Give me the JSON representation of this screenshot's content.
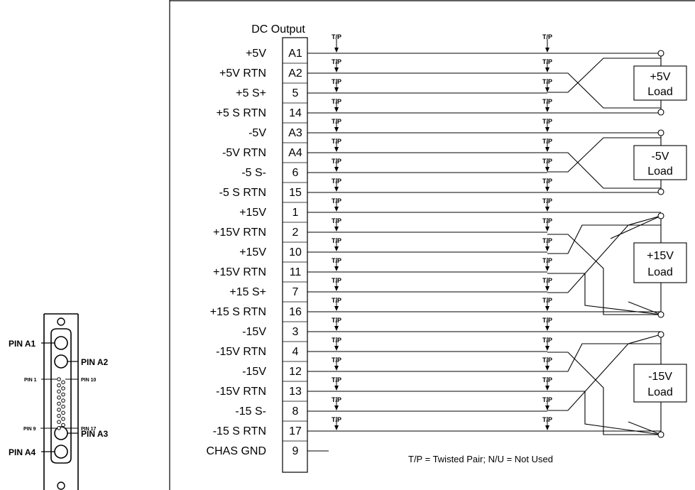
{
  "diagram": {
    "header": "DC Output",
    "rows": [
      {
        "signal": "+5V",
        "pin": "A1"
      },
      {
        "signal": "+5V RTN",
        "pin": "A2"
      },
      {
        "signal": "+5 S+",
        "pin": "5"
      },
      {
        "signal": "+5 S RTN",
        "pin": "14"
      },
      {
        "signal": "-5V",
        "pin": "A3"
      },
      {
        "signal": "-5V RTN",
        "pin": "A4"
      },
      {
        "signal": "-5 S-",
        "pin": "6"
      },
      {
        "signal": "-5 S RTN",
        "pin": "15"
      },
      {
        "signal": "+15V",
        "pin": "1"
      },
      {
        "signal": "+15V RTN",
        "pin": "2"
      },
      {
        "signal": "+15V",
        "pin": "10"
      },
      {
        "signal": "+15V RTN",
        "pin": "11"
      },
      {
        "signal": "+15 S+",
        "pin": "7"
      },
      {
        "signal": "+15 S RTN",
        "pin": "16"
      },
      {
        "signal": "-15V",
        "pin": "3"
      },
      {
        "signal": "-15V RTN",
        "pin": "4"
      },
      {
        "signal": "-15V",
        "pin": "12"
      },
      {
        "signal": "-15V RTN",
        "pin": "13"
      },
      {
        "signal": "-15 S-",
        "pin": "8"
      },
      {
        "signal": "-15 S RTN",
        "pin": "17"
      },
      {
        "signal": "CHAS GND",
        "pin": "9"
      }
    ],
    "twisted_pair_marker": "T/P",
    "loads": [
      {
        "line1": "+5V",
        "line2": "Load"
      },
      {
        "line1": "-5V",
        "line2": "Load"
      },
      {
        "line1": "+15V",
        "line2": "Load"
      },
      {
        "line1": "-15V",
        "line2": "Load"
      }
    ],
    "legend": "T/P = Twisted Pair;  N/U = Not Used"
  },
  "connector": {
    "labels": {
      "pin_a1": "PIN A1",
      "pin_a2": "PIN A2",
      "pin_1": "PIN 1",
      "pin_10": "PIN 10",
      "pin_9": "PIN 9",
      "pin_17": "PIN 17",
      "pin_a3": "PIN A3",
      "pin_a4": "PIN A4"
    }
  }
}
